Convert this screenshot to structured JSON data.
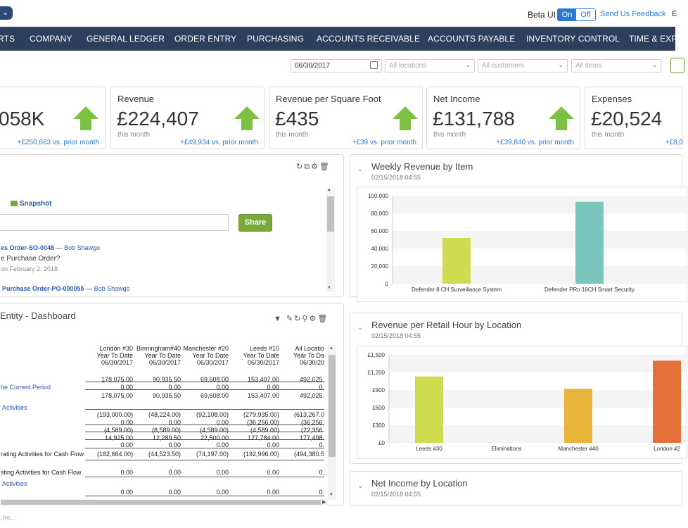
{
  "topbar": {
    "pill_label": "⌄",
    "beta_label": "Beta UI",
    "toggle_on": "On",
    "toggle_off": "Off",
    "feedback": "Send Us Feedback",
    "extra": "E"
  },
  "nav": [
    "RTS",
    "COMPANY",
    "GENERAL LEDGER",
    "ORDER ENTRY",
    "PURCHASING",
    "ACCOUNTS RECEIVABLE",
    "ACCOUNTS PAYABLE",
    "INVENTORY CONTROL",
    "TIME & EXPE"
  ],
  "filters": {
    "date": "06/30/2017",
    "locations_placeholder": "All locations",
    "customers_placeholder": "All customers",
    "items_placeholder": "All items"
  },
  "kpis": [
    {
      "title": "",
      "value": "058K",
      "sub": "",
      "delta": "+£250,663 vs. prior month"
    },
    {
      "title": "Revenue",
      "value": "£224,407",
      "sub": "this month",
      "delta": "+£49,934 vs. prior month"
    },
    {
      "title": "Revenue per Square Foot",
      "value": "£435",
      "sub": "this month",
      "delta": "+£39 vs. prior month"
    },
    {
      "title": "Net Income",
      "value": "£131,788",
      "sub": "this month",
      "delta": "+£39,840 vs. prior month"
    },
    {
      "title": "Expenses",
      "value": "£20,524",
      "sub": "this month",
      "delta": "+£8,0"
    }
  ],
  "colors": {
    "nav_bg": "#2c3f5d",
    "arrow_green": "#7dc142",
    "link_blue": "#2a7ad1",
    "share_green": "#7aa83a"
  },
  "activity": {
    "snapshot": "Snapshot",
    "share": "Share",
    "item1_link": "es Order-SO-0048",
    "item1_sep": " — ",
    "item1_user": "Bob Shawgo",
    "item1_text": "e Purchase Order?",
    "item1_date": "on February 2, 2018",
    "item2_link": "Purchase Order-PO-000055",
    "item2_sep": " — ",
    "item2_user": "Bob Shawgo"
  },
  "cashflow": {
    "title": "Entity - Dashboard",
    "columns": [
      {
        "name": "London #30",
        "l2": "Year To Date",
        "l3": "06/30/2017"
      },
      {
        "name": "Birmingham#40",
        "l2": "Year To Date",
        "l3": "06/30/2017"
      },
      {
        "name": "Manchester #20",
        "l2": "Year To Date",
        "l3": "06/30/2017"
      },
      {
        "name": "Leeds #10",
        "l2": "Year To Date",
        "l3": "06/30/2017"
      },
      {
        "name": "All Locatio",
        "l2": "Year To Da",
        "l3": "06/30/20"
      }
    ],
    "rows": [
      {
        "label": "",
        "vals": [
          "178,075.00",
          "90,935.50",
          "69,608.00",
          "153,407.00",
          "492,025."
        ]
      },
      {
        "label": "he Current Period",
        "link": true,
        "vals": [
          "0.00",
          "0.00",
          "0.00",
          "0.00",
          "0."
        ]
      },
      {
        "label": "",
        "vals": [
          "178,075.00",
          "90,935.50",
          "69,608.00",
          "153,407.00",
          "492,025."
        ]
      },
      {
        "label": "Activities",
        "link": true,
        "vals": [
          "",
          "",
          "",
          "",
          ""
        ]
      },
      {
        "label": "",
        "vals": [
          "(193,000.00)",
          "(48,224.00)",
          "(92,108.00)",
          "(279,935.00)",
          "(613,267.0"
        ]
      },
      {
        "label": "",
        "vals": [
          "0.00",
          "0.00",
          "0.00",
          "(36,256.00)",
          "(36,256."
        ]
      },
      {
        "label": "",
        "vals": [
          "(4,589.00)",
          "(8,589.00)",
          "(4,589.00)",
          "(4,589.00)",
          "(22,356."
        ]
      },
      {
        "label": "",
        "vals": [
          "14,925.00",
          "12,289.50",
          "22,500.00",
          "127,784.00",
          "177,498."
        ]
      },
      {
        "label": "",
        "vals": [
          "0.00",
          "0.00",
          "0.00",
          "0.00",
          "0."
        ]
      },
      {
        "label": "rating Activities for Cash Flow",
        "vals": [
          "(182,664.00)",
          "(44,523.50)",
          "(74,197.00)",
          "(192,996.00)",
          "(494,380.5"
        ]
      },
      {
        "label": "sting Activities for Cash Flow",
        "vals": [
          "0.00",
          "0.00",
          "0.00",
          "0.00",
          "0."
        ]
      },
      {
        "label": "Activities",
        "link": true,
        "vals": [
          "",
          "",
          "",
          "",
          ""
        ]
      },
      {
        "label": "",
        "vals": [
          "0.00",
          "0.00",
          "0.00",
          "0.00",
          "0."
        ]
      }
    ]
  },
  "chart_data": [
    {
      "type": "bar",
      "title": "Weekly Revenue by Item",
      "date": "02/15/2018 04:55",
      "categories": [
        "Defender 8 CH Surveillance System",
        "Defender PRo 16CH Smart Security"
      ],
      "values": [
        52000,
        93000
      ],
      "colors": [
        "#cfdc4f",
        "#79c6bd"
      ],
      "yticks": [
        "0",
        "20,000",
        "40,000",
        "60,000",
        "80,000",
        "100,000"
      ],
      "ylim": [
        0,
        100000
      ]
    },
    {
      "type": "bar",
      "title": "Revenue per Retail Hour by Location",
      "date": "02/15/2018 04:55",
      "categories": [
        "Leeds #30",
        "Eliminations",
        "Manchester #40",
        "London #2"
      ],
      "values": [
        1130,
        0,
        920,
        1400
      ],
      "colors": [
        "#cfdc4f",
        "#cccccc",
        "#e8b53a",
        "#e5713a"
      ],
      "yticks": [
        "£0",
        "£300",
        "£600",
        "£900",
        "£1,200",
        "£1,500"
      ],
      "ylim": [
        0,
        1500
      ]
    },
    {
      "type": "bar",
      "title": "Net Income by Location",
      "date": "02/15/2018 04:55"
    }
  ],
  "footer": ", Inc."
}
